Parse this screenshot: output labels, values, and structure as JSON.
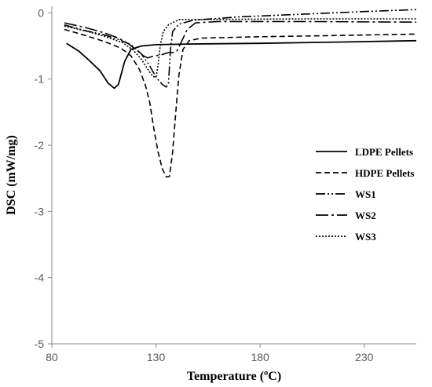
{
  "chart_data": {
    "type": "line",
    "title": "",
    "xlabel": "Temperature (ºC)",
    "ylabel": "DSC (mW/mg)",
    "xlim": [
      80,
      255
    ],
    "ylim": [
      -5,
      0.1
    ],
    "x_ticks": [
      80,
      130,
      180,
      230
    ],
    "y_ticks": [
      0,
      -1,
      -2,
      -3,
      -4,
      -5
    ],
    "x_tick_labels": [
      "80",
      "130",
      "180",
      "230"
    ],
    "y_tick_labels": [
      "0",
      "-1",
      "-2",
      "-3",
      "-4",
      "-5"
    ],
    "grid": false,
    "legend_position": "right",
    "series": [
      {
        "name": "LDPE Pellets",
        "dash": "solid",
        "color": "#000000",
        "points": [
          [
            87,
            -0.46
          ],
          [
            93,
            -0.58
          ],
          [
            98,
            -0.72
          ],
          [
            103,
            -0.87
          ],
          [
            107,
            -1.06
          ],
          [
            110,
            -1.14
          ],
          [
            112,
            -1.08
          ],
          [
            115,
            -0.73
          ],
          [
            118,
            -0.55
          ],
          [
            123,
            -0.5
          ],
          [
            130,
            -0.48
          ],
          [
            145,
            -0.47
          ],
          [
            180,
            -0.46
          ],
          [
            220,
            -0.44
          ],
          [
            255,
            -0.42
          ]
        ]
      },
      {
        "name": "HDPE Pellets",
        "dash": "dash",
        "color": "#000000",
        "points": [
          [
            86,
            -0.25
          ],
          [
            95,
            -0.33
          ],
          [
            105,
            -0.43
          ],
          [
            113,
            -0.53
          ],
          [
            118,
            -0.65
          ],
          [
            122,
            -0.85
          ],
          [
            125,
            -1.1
          ],
          [
            127,
            -1.35
          ],
          [
            129,
            -1.75
          ],
          [
            131,
            -2.1
          ],
          [
            133,
            -2.35
          ],
          [
            135,
            -2.48
          ],
          [
            136.5,
            -2.47
          ],
          [
            138,
            -2.1
          ],
          [
            139.5,
            -1.5
          ],
          [
            141,
            -0.95
          ],
          [
            143,
            -0.55
          ],
          [
            146,
            -0.42
          ],
          [
            152,
            -0.38
          ],
          [
            180,
            -0.36
          ],
          [
            220,
            -0.34
          ],
          [
            255,
            -0.32
          ]
        ]
      },
      {
        "name": "WS1",
        "dash": "dash-dot-dot",
        "color": "#000000",
        "points": [
          [
            86,
            -0.18
          ],
          [
            95,
            -0.26
          ],
          [
            105,
            -0.33
          ],
          [
            112,
            -0.4
          ],
          [
            118,
            -0.48
          ],
          [
            123,
            -0.62
          ],
          [
            127,
            -0.8
          ],
          [
            130,
            -0.97
          ],
          [
            133,
            -1.08
          ],
          [
            135,
            -1.12
          ],
          [
            136,
            -1.06
          ],
          [
            137,
            -0.55
          ],
          [
            138,
            -0.28
          ],
          [
            141,
            -0.17
          ],
          [
            148,
            -0.11
          ],
          [
            170,
            -0.06
          ],
          [
            200,
            -0.02
          ],
          [
            230,
            0.02
          ],
          [
            255,
            0.05
          ]
        ]
      },
      {
        "name": "WS2",
        "dash": "long-dash-dot",
        "color": "#000000",
        "points": [
          [
            86,
            -0.15
          ],
          [
            96,
            -0.22
          ],
          [
            105,
            -0.3
          ],
          [
            112,
            -0.38
          ],
          [
            117,
            -0.47
          ],
          [
            121,
            -0.57
          ],
          [
            124,
            -0.65
          ],
          [
            126,
            -0.68
          ],
          [
            128,
            -0.66
          ],
          [
            133,
            -0.63
          ],
          [
            136,
            -0.6
          ],
          [
            138,
            -0.6
          ],
          [
            140,
            -0.58
          ],
          [
            142,
            -0.45
          ],
          [
            145,
            -0.25
          ],
          [
            149,
            -0.15
          ],
          [
            160,
            -0.13
          ],
          [
            200,
            -0.13
          ],
          [
            255,
            -0.14
          ]
        ]
      },
      {
        "name": "WS3",
        "dash": "dot",
        "color": "#000000",
        "points": [
          [
            86,
            -0.2
          ],
          [
            96,
            -0.27
          ],
          [
            106,
            -0.36
          ],
          [
            114,
            -0.45
          ],
          [
            119,
            -0.56
          ],
          [
            123,
            -0.7
          ],
          [
            126,
            -0.85
          ],
          [
            128.5,
            -0.96
          ],
          [
            130,
            -0.97
          ],
          [
            131,
            -0.8
          ],
          [
            132,
            -0.5
          ],
          [
            133.5,
            -0.28
          ],
          [
            136,
            -0.18
          ],
          [
            141,
            -0.1
          ],
          [
            150,
            -0.1
          ],
          [
            200,
            -0.09
          ],
          [
            255,
            -0.09
          ]
        ]
      }
    ]
  }
}
